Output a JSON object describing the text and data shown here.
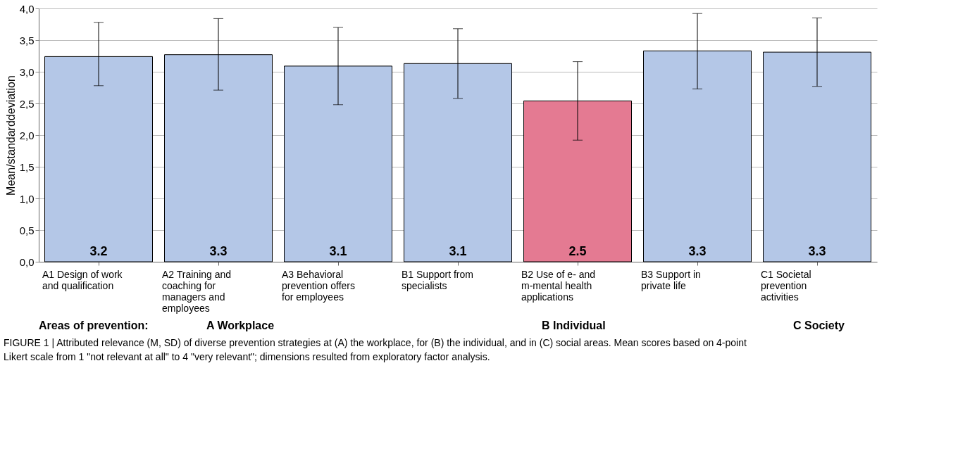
{
  "chart_data": {
    "type": "bar",
    "ylabel": "Mean/standarddeviation",
    "categories": [
      "A1 Design of work and qualification",
      "A2 Training and coaching for managers and employees",
      "A3 Behavioral prevention offers for employees",
      "B1 Support from specialists",
      "B2 Use of e- and m-mental health applications",
      "B3 Support in private life",
      "C1 Societal prevention activities"
    ],
    "values": [
      3.24,
      3.27,
      3.09,
      3.13,
      2.54,
      3.33,
      3.31
    ],
    "colors": [
      "#b4c7e7",
      "#b4c7e7",
      "#b4c7e7",
      "#b4c7e7",
      "#e47a92",
      "#b4c7e7",
      "#b4c7e7"
    ],
    "errors": [
      [
        2.78,
        3.78
      ],
      [
        2.71,
        3.84
      ],
      [
        2.48,
        3.7
      ],
      [
        2.58,
        3.68
      ],
      [
        1.92,
        3.16
      ],
      [
        2.73,
        3.92
      ],
      [
        2.77,
        3.85
      ]
    ],
    "value_labels": [
      "3.2",
      "3.3",
      "3.1",
      "3.1",
      "2.5",
      "3.3",
      "3.3"
    ],
    "ylim": [
      0,
      4
    ],
    "yticks": [
      {
        "value": 0,
        "label": "0,0"
      },
      {
        "value": 0.5,
        "label": "0,5"
      },
      {
        "value": 1,
        "label": "1,0"
      },
      {
        "value": 1.5,
        "label": "1,5"
      },
      {
        "value": 2,
        "label": "2,0"
      },
      {
        "value": 2.5,
        "label": "2,5"
      },
      {
        "value": 3,
        "label": "3,0"
      },
      {
        "value": 3.5,
        "label": "3,5"
      },
      {
        "value": 4,
        "label": "4,0"
      }
    ],
    "grid": "y",
    "annotations": [
      "Areas of prevention:",
      "A  Workplace",
      "B  Individual",
      "C  Society",
      "FIGURE 1 | Attributed relevance (M, SD) of diverse prevention strategies at (A) the workplace, for (B) the individual, and in (C) social areas. Mean scores based on 4-point Likert scale from 1 \"not relevant at all\" to 4 \"very relevant\"; dimensions resulted from exploratory factor analysis."
    ]
  }
}
